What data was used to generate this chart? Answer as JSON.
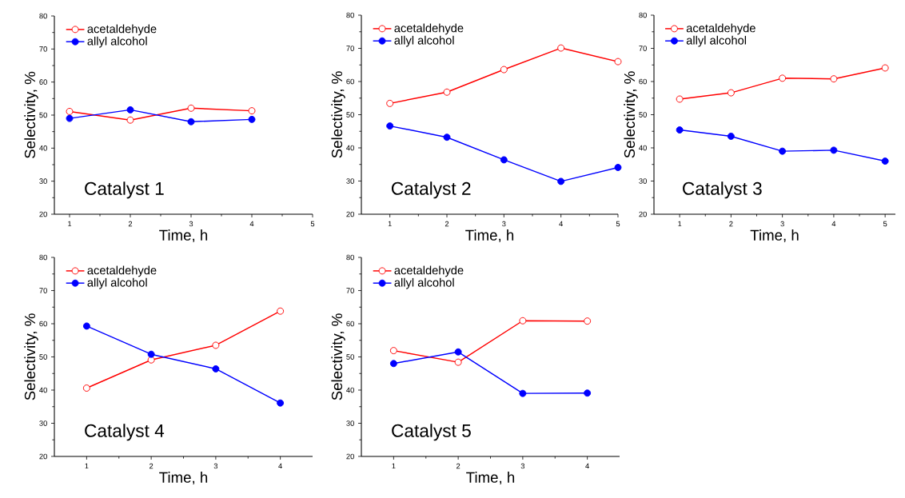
{
  "chart_data": [
    {
      "type": "line",
      "xlabel": "Time, h",
      "ylabel": "Selectivity, %",
      "x": [
        1,
        2,
        3,
        4
      ],
      "xlim": [
        0.75,
        5
      ],
      "ylim": [
        20,
        80
      ],
      "xticks": [
        1,
        2,
        3,
        4,
        5
      ],
      "yticks": [
        20,
        30,
        40,
        50,
        60,
        70,
        80
      ],
      "legend": "top left",
      "marker": "circle",
      "annotations": [
        "Catalyst 1"
      ],
      "series": [
        {
          "name": "acetaldehyde",
          "color": "#ff0000",
          "values": [
            51.1,
            48.5,
            52.1,
            51.3
          ]
        },
        {
          "name": "allyl alcohol",
          "color": "#0000ff",
          "values": [
            49.0,
            51.6,
            48.0,
            48.7
          ]
        }
      ]
    },
    {
      "type": "line",
      "xlabel": "Time, h",
      "ylabel": "Selectivity, %",
      "x": [
        1,
        2,
        3,
        4,
        5
      ],
      "xlim": [
        0.5,
        5
      ],
      "ylim": [
        20,
        80
      ],
      "xticks": [
        1,
        2,
        3,
        4,
        5
      ],
      "yticks": [
        20,
        30,
        40,
        50,
        60,
        70,
        80
      ],
      "legend": "top left",
      "marker": "circle",
      "annotations": [
        "Catalyst 2"
      ],
      "series": [
        {
          "name": "acetaldehyde",
          "color": "#ff0000",
          "values": [
            53.4,
            56.8,
            63.6,
            70.1,
            66.0
          ]
        },
        {
          "name": "allyl alcohol",
          "color": "#0000ff",
          "values": [
            46.6,
            43.2,
            36.4,
            29.9,
            34.1
          ]
        }
      ]
    },
    {
      "type": "line",
      "xlabel": "Time, h",
      "ylabel": "Selectivity, %",
      "x": [
        1,
        2,
        3,
        4,
        5
      ],
      "xlim": [
        0.5,
        5.2
      ],
      "ylim": [
        20,
        80
      ],
      "xticks": [
        1,
        2,
        3,
        4,
        5
      ],
      "yticks": [
        20,
        30,
        40,
        50,
        60,
        70,
        80
      ],
      "legend": "top left",
      "marker": "circle",
      "annotations": [
        "Catalyst 3"
      ],
      "series": [
        {
          "name": "acetaldehyde",
          "color": "#ff0000",
          "values": [
            54.7,
            56.6,
            61.0,
            60.8,
            64.1
          ]
        },
        {
          "name": "allyl alcohol",
          "color": "#0000ff",
          "values": [
            45.4,
            43.5,
            39.0,
            39.3,
            36.0
          ]
        }
      ]
    },
    {
      "type": "line",
      "xlabel": "Time, h",
      "ylabel": "Selectivity, %",
      "x": [
        1,
        2,
        3,
        4
      ],
      "xlim": [
        0.5,
        4.5
      ],
      "ylim": [
        20,
        80
      ],
      "xticks": [
        1,
        2,
        3,
        4
      ],
      "yticks": [
        20,
        30,
        40,
        50,
        60,
        70,
        80
      ],
      "legend": "top left",
      "marker": "circle",
      "annotations": [
        "Catalyst 4"
      ],
      "series": [
        {
          "name": "acetaldehyde",
          "color": "#ff0000",
          "values": [
            40.6,
            49.1,
            53.5,
            63.8
          ]
        },
        {
          "name": "allyl alcohol",
          "color": "#0000ff",
          "values": [
            59.3,
            50.8,
            46.4,
            36.1
          ]
        }
      ]
    },
    {
      "type": "line",
      "xlabel": "Time, h",
      "ylabel": "Selectivity, %",
      "x": [
        1,
        2,
        3,
        4
      ],
      "xlim": [
        0.5,
        4.5
      ],
      "ylim": [
        20,
        80
      ],
      "xticks": [
        1,
        2,
        3,
        4
      ],
      "yticks": [
        20,
        30,
        40,
        50,
        60,
        70,
        80
      ],
      "legend": "top left",
      "marker": "circle",
      "annotations": [
        "Catalyst 5"
      ],
      "series": [
        {
          "name": "acetaldehyde",
          "color": "#ff0000",
          "values": [
            51.9,
            48.4,
            60.9,
            60.8
          ]
        },
        {
          "name": "allyl alcohol",
          "color": "#0000ff",
          "values": [
            48.0,
            51.5,
            39.0,
            39.1
          ]
        }
      ]
    }
  ]
}
